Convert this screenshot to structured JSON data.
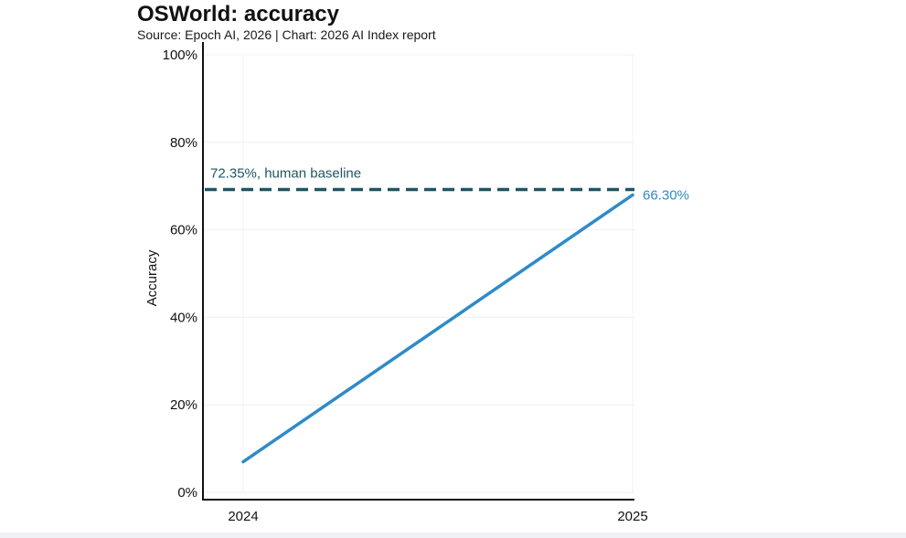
{
  "chart_data": {
    "type": "line",
    "title": "OSWorld: accuracy",
    "subtitle": "Source: Epoch AI, 2026 | Chart: 2026 AI Index report",
    "ylabel": "Accuracy",
    "xlabel": "",
    "ylim": [
      0,
      100
    ],
    "y_ticks": [
      {
        "value": 0,
        "label": "0%"
      },
      {
        "value": 20,
        "label": "20%"
      },
      {
        "value": 40,
        "label": "40%"
      },
      {
        "value": 60,
        "label": "60%"
      },
      {
        "value": 80,
        "label": "80%"
      },
      {
        "value": 100,
        "label": "100%"
      }
    ],
    "x_ticks": [
      {
        "value": 2024,
        "label": "2024"
      },
      {
        "value": 2025,
        "label": "2025"
      }
    ],
    "grid": true,
    "series": [
      {
        "x": [
          2024,
          2025
        ],
        "values": [
          5.3,
          66.3
        ],
        "color": "#2e8bc7",
        "end_label": "66.30%"
      }
    ],
    "reference_line": {
      "value": 72.35,
      "label": "72.35%, human baseline",
      "color": "#1f5560",
      "style": "dashed"
    }
  }
}
